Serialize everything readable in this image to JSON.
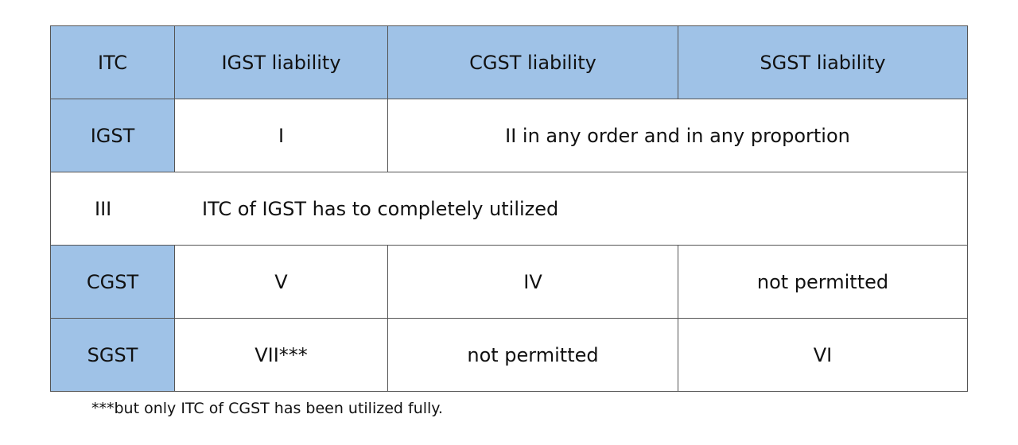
{
  "header": {
    "itc": "ITC",
    "igst": "IGST liability",
    "cgst": "CGST liability",
    "sgst": "SGST liability"
  },
  "rows": {
    "igst": {
      "label": "IGST",
      "igst": "I",
      "rest": "II in any order and in any proportion"
    },
    "note_row": {
      "num": "III",
      "text": "ITC of IGST has to completely utilized"
    },
    "cgst": {
      "label": "CGST",
      "igst": "V",
      "cgst": "IV",
      "sgst": "not permitted"
    },
    "sgst": {
      "label": "SGST",
      "igst": "VII***",
      "cgst": "not permitted",
      "sgst": "VI"
    }
  },
  "footnote": "***but only ITC of CGST has been utilized fully.",
  "colors": {
    "header_fill": "#9fc2e7",
    "border": "#555555"
  }
}
